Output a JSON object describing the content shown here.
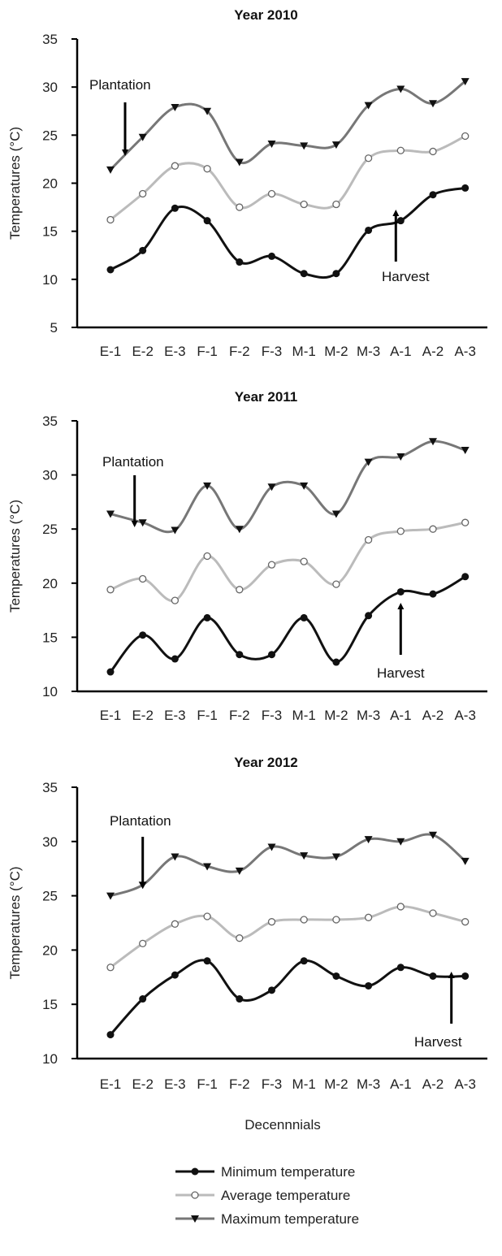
{
  "chart_data": [
    {
      "type": "line",
      "title": "Year 2010",
      "ylabel": "Temperatures (°C)",
      "xlabel": "",
      "ylim": [
        5,
        35
      ],
      "yticks": [
        5,
        10,
        15,
        20,
        25,
        30,
        35
      ],
      "categories": [
        "E-1",
        "E-2",
        "E-3",
        "F-1",
        "F-2",
        "F-3",
        "M-1",
        "M-2",
        "M-3",
        "A-1",
        "A-2",
        "A-3"
      ],
      "series": [
        {
          "name": "Minimum temperature",
          "values": [
            11.0,
            13.0,
            17.4,
            16.1,
            11.8,
            12.4,
            10.6,
            10.6,
            15.1,
            16.1,
            18.8,
            19.5
          ]
        },
        {
          "name": "Average temperature",
          "values": [
            16.2,
            18.9,
            21.8,
            21.5,
            17.5,
            18.9,
            17.8,
            17.8,
            22.6,
            23.4,
            23.3,
            24.9
          ]
        },
        {
          "name": "Maximum temperature",
          "values": [
            21.4,
            24.8,
            27.9,
            27.5,
            22.2,
            24.1,
            23.9,
            24.0,
            28.1,
            29.8,
            28.3,
            30.6
          ]
        }
      ],
      "annotations": [
        {
          "text": "Plantation",
          "at": "E-1",
          "direction": "down"
        },
        {
          "text": "Harvest",
          "at": "A-1",
          "direction": "up"
        }
      ]
    },
    {
      "type": "line",
      "title": "Year 2011",
      "ylabel": "Temperatures (°C)",
      "xlabel": "",
      "ylim": [
        10,
        35
      ],
      "yticks": [
        10,
        15,
        20,
        25,
        30,
        35
      ],
      "categories": [
        "E-1",
        "E-2",
        "E-3",
        "F-1",
        "F-2",
        "F-3",
        "M-1",
        "M-2",
        "M-3",
        "A-1",
        "A-2",
        "A-3"
      ],
      "series": [
        {
          "name": "Minimum temperature",
          "values": [
            11.8,
            15.2,
            13.0,
            16.8,
            13.4,
            13.4,
            16.8,
            12.7,
            17.0,
            19.2,
            19.0,
            20.6
          ]
        },
        {
          "name": "Average temperature",
          "values": [
            19.4,
            20.4,
            18.4,
            22.5,
            19.4,
            21.7,
            22.0,
            19.9,
            24.0,
            24.8,
            25.0,
            25.6
          ]
        },
        {
          "name": "Maximum temperature",
          "values": [
            26.4,
            25.6,
            24.9,
            29.0,
            25.0,
            28.9,
            29.0,
            26.4,
            31.2,
            31.7,
            33.1,
            32.3
          ]
        }
      ],
      "annotations": [
        {
          "text": "Plantation",
          "at": "E-2",
          "direction": "down"
        },
        {
          "text": "Harvest",
          "at": "A-1",
          "direction": "up"
        }
      ]
    },
    {
      "type": "line",
      "title": "Year 2012",
      "ylabel": "Temperatures (°C)",
      "xlabel": "Decennnials",
      "ylim": [
        10,
        35
      ],
      "yticks": [
        10,
        15,
        20,
        25,
        30,
        35
      ],
      "categories": [
        "E-1",
        "E-2",
        "E-3",
        "F-1",
        "F-2",
        "F-3",
        "M-1",
        "M-2",
        "M-3",
        "A-1",
        "A-2",
        "A-3"
      ],
      "series": [
        {
          "name": "Minimum temperature",
          "values": [
            12.2,
            15.5,
            17.7,
            19.0,
            15.5,
            16.3,
            19.0,
            17.6,
            16.7,
            18.4,
            17.6,
            17.6
          ]
        },
        {
          "name": "Average temperature",
          "values": [
            18.4,
            20.6,
            22.4,
            23.1,
            21.1,
            22.6,
            22.8,
            22.8,
            23.0,
            24.0,
            23.4,
            22.6
          ]
        },
        {
          "name": "Maximum temperature",
          "values": [
            25.0,
            26.0,
            28.6,
            27.7,
            27.3,
            29.5,
            28.7,
            28.6,
            30.2,
            30.0,
            30.6,
            28.2
          ]
        }
      ],
      "annotations": [
        {
          "text": "Plantation",
          "at": "E-2",
          "direction": "down"
        },
        {
          "text": "Harvest",
          "at": "A-3",
          "direction": "up"
        }
      ]
    }
  ],
  "legend": {
    "placement": "bottom-center",
    "items": [
      {
        "label": "Minimum temperature",
        "marker": "filled-circle",
        "color": "#111111"
      },
      {
        "label": "Average temperature",
        "marker": "open-circle",
        "color": "#bbbbbb"
      },
      {
        "label": "Maximum temperature",
        "marker": "filled-triangle-down",
        "color": "#777777"
      }
    ]
  },
  "colors": {
    "minimum": "#111111",
    "average": "#bbbbbb",
    "maximum": "#777777",
    "axis": "#000000"
  }
}
